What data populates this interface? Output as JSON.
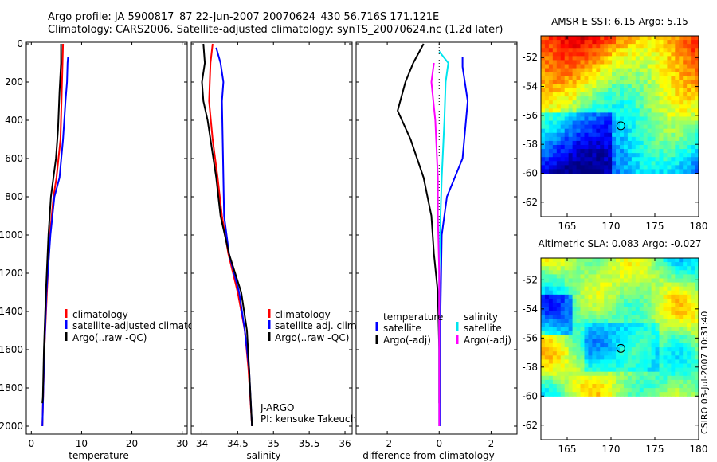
{
  "header": {
    "line1": "Argo profile: JA 5900817_87 22-Jun-2007 20070624_430 56.716S 171.121E",
    "line2": "Climatology: CARS2006. Satellite-adjusted climatology: synTS_20070624.nc (1.2d later)"
  },
  "credit": "CSIRO 03-Jul-2007 10:31:40",
  "colors": {
    "climatology": "#ff0000",
    "satellite": "#0000ff",
    "argo": "#000000",
    "salinity_sat": "#00e5ee",
    "salinity_argo": "#ff00ff"
  },
  "chart_data": [
    {
      "type": "line",
      "xlabel": "temperature",
      "ylabel": "",
      "xlim": [
        -1,
        31
      ],
      "ylim": [
        2000,
        0
      ],
      "y_reversed": true,
      "xticks": [
        0,
        10,
        20,
        30
      ],
      "yticks": [
        0,
        200,
        400,
        600,
        800,
        1000,
        1200,
        1400,
        1600,
        1800,
        2000
      ],
      "legend": {
        "position": "lower-right",
        "entries": [
          "climatology",
          "satellite-adjusted climatology",
          "Argo(..raw -QC)"
        ]
      },
      "series": [
        {
          "name": "climatology",
          "color": "#ff0000",
          "points": [
            [
              6.3,
              0
            ],
            [
              6.2,
              100
            ],
            [
              6.0,
              300
            ],
            [
              5.8,
              500
            ],
            [
              5.0,
              700
            ],
            [
              4.4,
              800
            ],
            [
              3.7,
              1000
            ],
            [
              3.1,
              1300
            ],
            [
              2.6,
              1600
            ],
            [
              2.3,
              1900
            ],
            [
              2.2,
              2000
            ]
          ]
        },
        {
          "name": "satellite-adjusted climatology",
          "color": "#0000ff",
          "points": [
            [
              7.3,
              70
            ],
            [
              7.2,
              100
            ],
            [
              7.1,
              200
            ],
            [
              6.8,
              300
            ],
            [
              6.3,
              500
            ],
            [
              5.6,
              700
            ],
            [
              4.6,
              800
            ],
            [
              3.8,
              1000
            ],
            [
              3.0,
              1300
            ],
            [
              2.6,
              1600
            ],
            [
              2.3,
              1900
            ],
            [
              2.2,
              2000
            ]
          ]
        },
        {
          "name": "Argo(..raw -QC)",
          "color": "#000000",
          "points": [
            [
              5.9,
              0
            ],
            [
              5.9,
              100
            ],
            [
              5.6,
              250
            ],
            [
              5.3,
              450
            ],
            [
              4.9,
              600
            ],
            [
              3.9,
              800
            ],
            [
              3.4,
              1000
            ],
            [
              2.9,
              1300
            ],
            [
              2.5,
              1600
            ],
            [
              2.3,
              1850
            ],
            [
              2.2,
              1880
            ]
          ]
        }
      ]
    },
    {
      "type": "line",
      "xlabel": "salinity",
      "ylabel": "",
      "xlim": [
        33.85,
        36.1
      ],
      "ylim": [
        2000,
        0
      ],
      "y_reversed": true,
      "xticks": [
        34,
        34.5,
        35,
        35.5,
        36
      ],
      "legend": {
        "position": "lower-right",
        "entries": [
          "climatology",
          "satellite adj. clim.",
          "Argo(..raw -QC)"
        ]
      },
      "annotation": [
        "J-ARGO",
        "PI: kensuke Takeuchi"
      ],
      "series": [
        {
          "name": "climatology",
          "color": "#ff0000",
          "points": [
            [
              34.15,
              0
            ],
            [
              34.12,
              100
            ],
            [
              34.1,
              300
            ],
            [
              34.15,
              500
            ],
            [
              34.22,
              700
            ],
            [
              34.28,
              900
            ],
            [
              34.37,
              1100
            ],
            [
              34.5,
              1300
            ],
            [
              34.6,
              1500
            ],
            [
              34.65,
              1700
            ],
            [
              34.7,
              2000
            ]
          ]
        },
        {
          "name": "satellite adj. clim.",
          "color": "#0000ff",
          "points": [
            [
              34.2,
              20
            ],
            [
              34.26,
              100
            ],
            [
              34.3,
              200
            ],
            [
              34.28,
              300
            ],
            [
              34.29,
              500
            ],
            [
              34.3,
              700
            ],
            [
              34.31,
              900
            ],
            [
              34.38,
              1100
            ],
            [
              34.52,
              1300
            ],
            [
              34.6,
              1500
            ],
            [
              34.66,
              1700
            ],
            [
              34.7,
              2000
            ]
          ]
        },
        {
          "name": "Argo(..raw -QC)",
          "color": "#000000",
          "points": [
            [
              34.02,
              0
            ],
            [
              34.04,
              100
            ],
            [
              34.0,
              200
            ],
            [
              34.02,
              300
            ],
            [
              34.08,
              400
            ],
            [
              34.12,
              500
            ],
            [
              34.2,
              700
            ],
            [
              34.26,
              900
            ],
            [
              34.38,
              1100
            ],
            [
              34.55,
              1300
            ],
            [
              34.63,
              1500
            ],
            [
              34.66,
              1700
            ],
            [
              34.7,
              2000
            ]
          ]
        }
      ]
    },
    {
      "type": "line",
      "xlabel": "difference from climatology",
      "ylabel": "",
      "xlim": [
        -3.2,
        3.0
      ],
      "ylim": [
        2000,
        0
      ],
      "y_reversed": true,
      "xticks": [
        -2,
        0,
        2
      ],
      "legend": {
        "position": "lower-right",
        "entries": [
          "temperature",
          "satellite",
          "Argo(-adj)",
          "salinity",
          "satellite",
          "Argo(-adj)"
        ]
      },
      "series": [
        {
          "name": "temperature satellite",
          "color": "#0000ff",
          "points": [
            [
              0.9,
              70
            ],
            [
              0.9,
              120
            ],
            [
              1.1,
              300
            ],
            [
              0.9,
              600
            ],
            [
              0.3,
              800
            ],
            [
              0.1,
              1000
            ],
            [
              0.05,
              1400
            ],
            [
              0.05,
              2000
            ]
          ]
        },
        {
          "name": "temperature Argo(-adj)",
          "color": "#000000",
          "points": [
            [
              -0.6,
              0
            ],
            [
              -1.0,
              100
            ],
            [
              -1.3,
              200
            ],
            [
              -1.6,
              350
            ],
            [
              -1.1,
              500
            ],
            [
              -0.6,
              700
            ],
            [
              -0.3,
              900
            ],
            [
              -0.2,
              1100
            ],
            [
              -0.05,
              1300
            ],
            [
              0.0,
              1600
            ],
            [
              0.0,
              1880
            ]
          ]
        },
        {
          "name": "salinity satellite",
          "color": "#00e5ee",
          "points": [
            [
              0.0,
              40
            ],
            [
              0.35,
              100
            ],
            [
              0.25,
              200
            ],
            [
              0.2,
              400
            ],
            [
              0.1,
              700
            ],
            [
              0.05,
              900
            ],
            [
              0.0,
              1200
            ],
            [
              0.0,
              2000
            ]
          ]
        },
        {
          "name": "salinity Argo(-adj)",
          "color": "#ff00ff",
          "points": [
            [
              -0.2,
              100
            ],
            [
              -0.3,
              200
            ],
            [
              -0.15,
              400
            ],
            [
              -0.05,
              700
            ],
            [
              -0.05,
              900
            ],
            [
              0.0,
              1200
            ],
            [
              0.0,
              2000
            ]
          ]
        }
      ]
    },
    {
      "type": "heatmap",
      "title": "AMSR-E SST: 6.15 Argo: 5.15",
      "xlim": [
        162,
        180
      ],
      "ylim": [
        -63,
        -50.5
      ],
      "xticks": [
        165,
        170,
        175,
        180
      ],
      "yticks": [
        -52,
        -54,
        -56,
        -58,
        -60,
        -62
      ],
      "data_extent_lat": [
        -60,
        -50.5
      ],
      "argo_position": [
        171.121,
        -56.716
      ]
    },
    {
      "type": "heatmap",
      "title": "Altimetric SLA: 0.083 Argo: -0.027",
      "xlim": [
        162,
        180
      ],
      "ylim": [
        -63,
        -50.5
      ],
      "xticks": [
        165,
        170,
        175,
        180
      ],
      "yticks": [
        -52,
        -54,
        -56,
        -58,
        -60,
        -62
      ],
      "data_extent_lat": [
        -60,
        -50.5
      ],
      "argo_position": [
        171.121,
        -56.716
      ]
    }
  ]
}
